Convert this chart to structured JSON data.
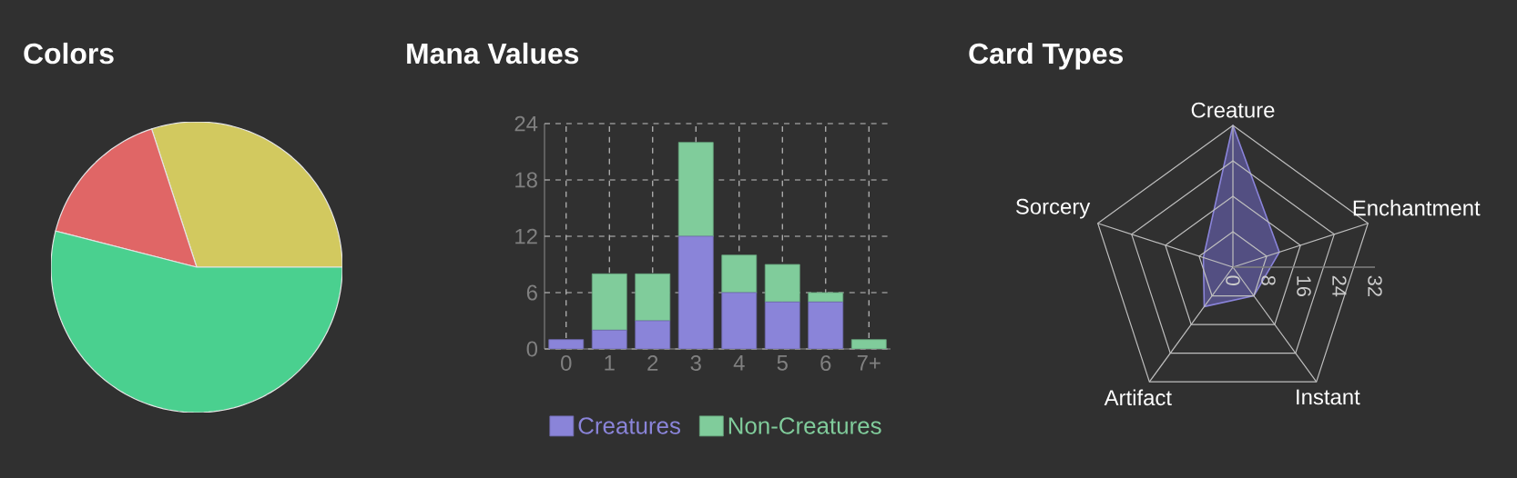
{
  "chart_data": [
    {
      "type": "pie",
      "title": "Colors",
      "categories": [
        null,
        null,
        null
      ],
      "values": [
        30,
        16,
        54
      ],
      "colors": [
        "#d2c95f",
        "#e06666",
        "#4ad08f"
      ]
    },
    {
      "type": "bar",
      "title": "Mana Values",
      "categories": [
        "0",
        "1",
        "2",
        "3",
        "4",
        "5",
        "6",
        "7+"
      ],
      "stacked": true,
      "series": [
        {
          "name": "Creatures",
          "color": "#8a84d9",
          "values": [
            1,
            2,
            3,
            12,
            6,
            5,
            5,
            0
          ]
        },
        {
          "name": "Non-Creatures",
          "color": "#80cc9b",
          "values": [
            0,
            6,
            5,
            10,
            4,
            4,
            1,
            1
          ]
        }
      ],
      "ylim": [
        0,
        24
      ],
      "yticks": [
        0,
        6,
        12,
        18,
        24
      ],
      "grid": true,
      "legend": "bottom"
    },
    {
      "type": "radar",
      "title": "Card Types",
      "categories": [
        "Creature",
        "Enchantment",
        "Instant",
        "Artifact",
        "Sorcery"
      ],
      "series": [
        {
          "color": "#8a84d9",
          "values": [
            32,
            11,
            8,
            11,
            7
          ]
        }
      ],
      "ylim": [
        0,
        32
      ],
      "yticks": [
        0,
        8,
        16,
        24,
        32
      ]
    }
  ]
}
